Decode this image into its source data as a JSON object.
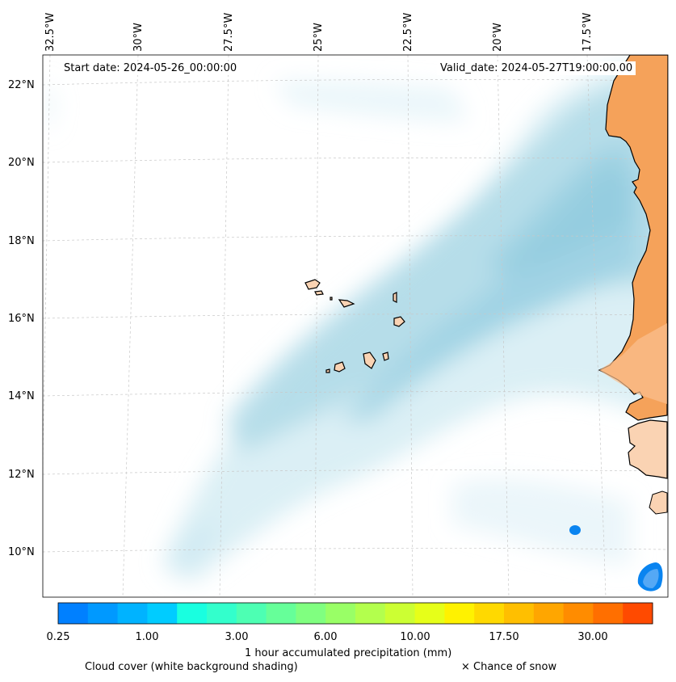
{
  "map": {
    "start_date": "Start date: 2024-05-26_00:00:00",
    "valid_date": "Valid_date: 2024-05-27T19:00:00.00",
    "lon_labels": [
      "32.5°W",
      "30°W",
      "27.5°W",
      "25°W",
      "22.5°W",
      "20°W",
      "17.5°W"
    ],
    "lat_labels": [
      "22°N",
      "20°N",
      "18°N",
      "16°N",
      "14°N",
      "12°N",
      "10°N"
    ],
    "colors": {
      "land_africa": "#f5a25a",
      "land_islands": "#fad3b3",
      "cloud": "#b8dde9",
      "precip_blue": "#0a84f0"
    }
  },
  "colorbar": {
    "tick_labels": [
      "0.25",
      "1.00",
      "3.00",
      "6.00",
      "10.00",
      "17.50",
      "30.00"
    ],
    "colors": [
      "#0080ff",
      "#0099ff",
      "#00b3ff",
      "#00ccff",
      "#19ffe0",
      "#33ffcc",
      "#4dffb3",
      "#66ff99",
      "#80ff80",
      "#99ff66",
      "#b3ff4d",
      "#ccff33",
      "#e6ff19",
      "#fff200",
      "#ffd900",
      "#ffbf00",
      "#ffa600",
      "#ff8c00",
      "#ff6f00",
      "#ff4a00"
    ],
    "label": "1 hour accumulated precipitation (mm)"
  },
  "legend": {
    "cloud_cover": "Cloud cover (white background shading)",
    "snow": "× Chance of snow"
  }
}
